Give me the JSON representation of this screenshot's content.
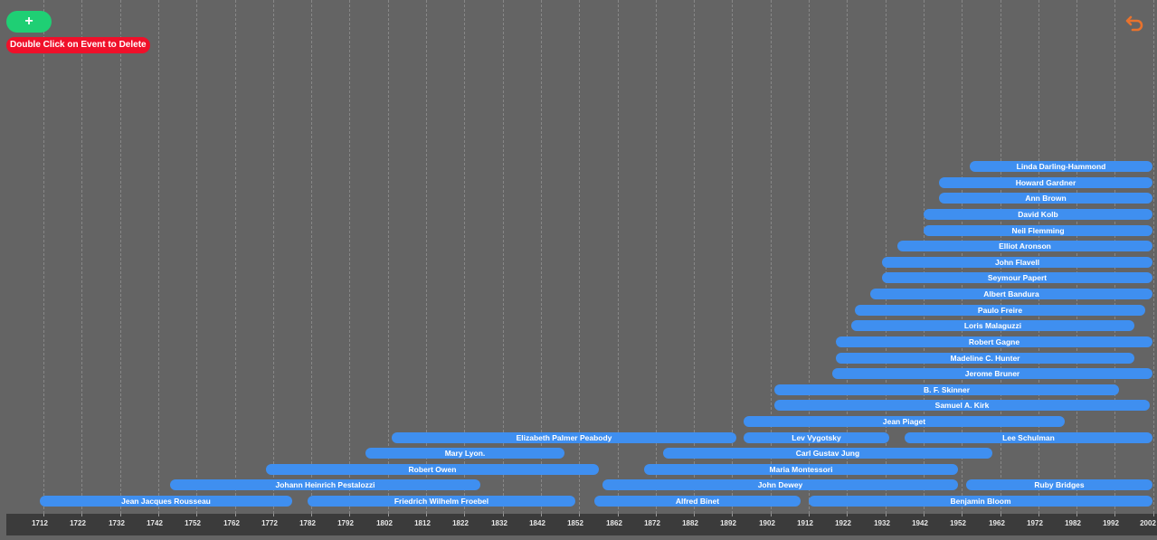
{
  "toolbar": {
    "add_label": "+",
    "delete_hint": "Double Click on Event to Delete",
    "undo_icon": "undo-icon",
    "undo_color": "#e8722d",
    "add_color": "#1fcf74",
    "hint_color": "#f0102a"
  },
  "timeline": {
    "bar_color": "#3f8ff0",
    "axis_ticks": [
      "1712",
      "1722",
      "1732",
      "1742",
      "1752",
      "1762",
      "1772",
      "1782",
      "1792",
      "1802",
      "1812",
      "1822",
      "1832",
      "1842",
      "1852",
      "1862",
      "1872",
      "1882",
      "1892",
      "1902",
      "1912",
      "1922",
      "1932",
      "1942",
      "1952",
      "1962",
      "1972",
      "1982",
      "1992",
      "2002"
    ],
    "events": [
      {
        "name": "Linda Darling-Hammond",
        "start": 1955,
        "end": 2006
      },
      {
        "name": "Howard Gardner",
        "start": 1947,
        "end": 2006
      },
      {
        "name": "Ann Brown",
        "start": 1947,
        "end": 2003
      },
      {
        "name": "David Kolb",
        "start": 1943,
        "end": 2006
      },
      {
        "name": "Neil Flemming",
        "start": 1943,
        "end": 2006
      },
      {
        "name": "Elliot Aronson",
        "start": 1936,
        "end": 2006
      },
      {
        "name": "John Flavell",
        "start": 1932,
        "end": 2006
      },
      {
        "name": "Seymour Papert",
        "start": 1932,
        "end": 2006
      },
      {
        "name": "Albert Bandura",
        "start": 1929,
        "end": 2006
      },
      {
        "name": "Paulo Freire",
        "start": 1925,
        "end": 2001
      },
      {
        "name": "Loris Malaguzzi",
        "start": 1924,
        "end": 1998
      },
      {
        "name": "Robert Gagne",
        "start": 1920,
        "end": 2006
      },
      {
        "name": "Madeline C. Hunter",
        "start": 1920,
        "end": 1998
      },
      {
        "name": "Jerome Bruner",
        "start": 1919,
        "end": 2006
      },
      {
        "name": "B. F. Skinner",
        "start": 1904,
        "end": 1994
      },
      {
        "name": "Samuel A. Kirk",
        "start": 1904,
        "end": 2002
      },
      {
        "name": "Jean Piaget",
        "start": 1896,
        "end": 1980
      },
      {
        "name": "Lev Vygotsky",
        "start": 1896,
        "end": 1934
      },
      {
        "name": "Lee Schulman",
        "start": 1938,
        "end": 2006
      },
      {
        "name": "Elizabeth Palmer Peabody",
        "start": 1804,
        "end": 1894
      },
      {
        "name": "Mary Lyon.",
        "start": 1797,
        "end": 1849
      },
      {
        "name": "Carl Gustav Jung",
        "start": 1875,
        "end": 1961
      },
      {
        "name": "Robert Owen",
        "start": 1771,
        "end": 1858
      },
      {
        "name": "Maria Montessori",
        "start": 1870,
        "end": 1952
      },
      {
        "name": "Johann Heinrich Pestalozzi",
        "start": 1746,
        "end": 1827
      },
      {
        "name": "John Dewey",
        "start": 1859,
        "end": 1952
      },
      {
        "name": "Ruby Bridges",
        "start": 1954,
        "end": 2003
      },
      {
        "name": "Jean Jacques Rousseau",
        "start": 1712,
        "end": 1778
      },
      {
        "name": "Friedrich Wilhelm Froebel",
        "start": 1782,
        "end": 1852
      },
      {
        "name": "Alfred Binet",
        "start": 1857,
        "end": 1911
      },
      {
        "name": "Benjamin Bloom",
        "start": 1913,
        "end": 2003
      }
    ]
  }
}
